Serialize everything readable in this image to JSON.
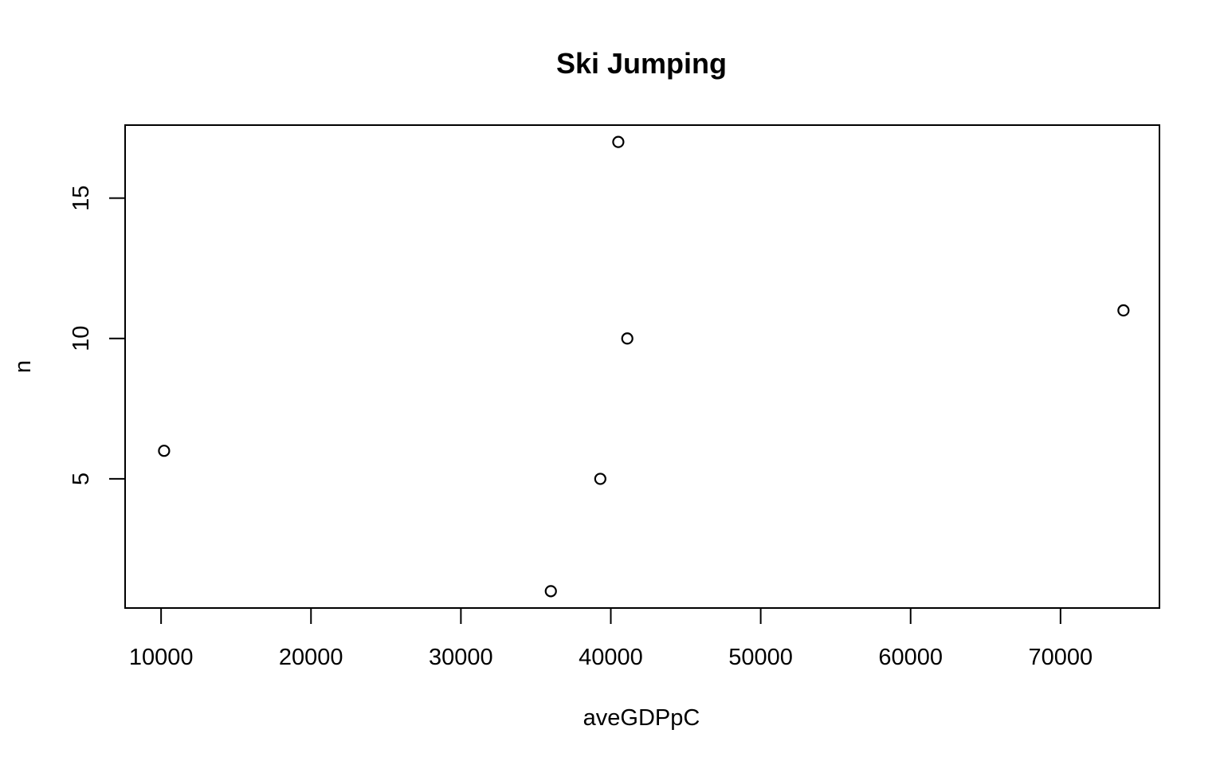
{
  "chart_data": {
    "type": "scatter",
    "title": "Ski Jumping",
    "xlabel": "aveGDPpC",
    "ylabel": "n",
    "xlim": [
      7600,
      76600
    ],
    "ylim": [
      0.4,
      17.6
    ],
    "xticks": [
      10000,
      20000,
      30000,
      40000,
      50000,
      60000,
      70000
    ],
    "yticks": [
      5,
      10,
      15
    ],
    "grid": false,
    "legend": "none",
    "points": [
      {
        "x": 10200,
        "y": 6
      },
      {
        "x": 36000,
        "y": 1
      },
      {
        "x": 39300,
        "y": 5
      },
      {
        "x": 40500,
        "y": 17
      },
      {
        "x": 41100,
        "y": 10
      },
      {
        "x": 74200,
        "y": 11
      }
    ]
  }
}
